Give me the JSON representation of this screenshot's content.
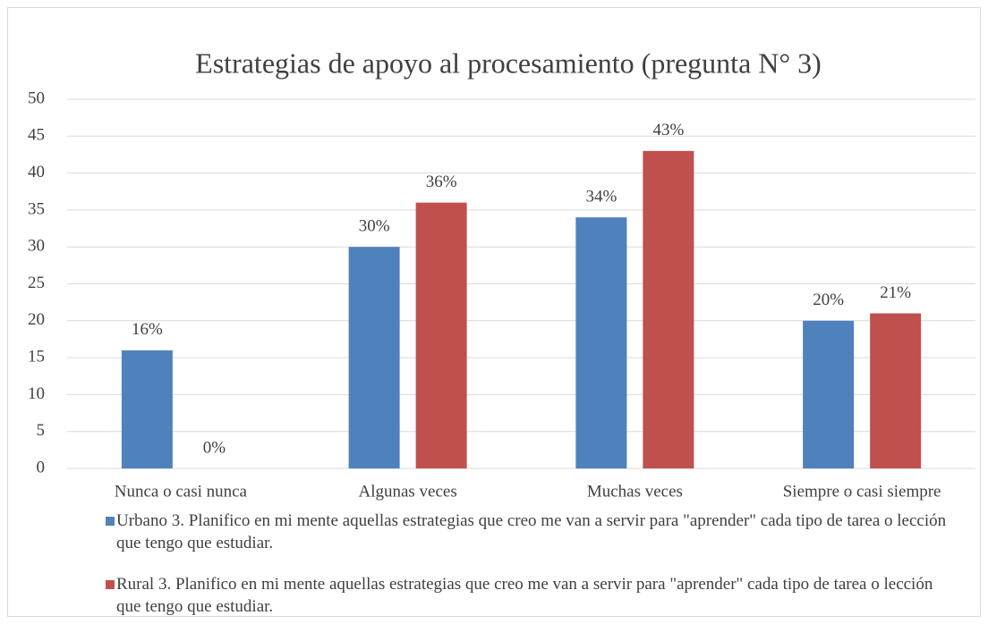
{
  "chart_data": {
    "type": "bar",
    "title": "Estrategias de apoyo al procesamiento    (pregunta N° 3)",
    "categories": [
      "Nunca o casi nunca",
      "Algunas veces",
      "Muchas veces",
      "Siempre o casi siempre"
    ],
    "series": [
      {
        "name": "Urbano 3. Planifico en mi mente aquellas estrategias que creo me van a servir para \"aprender\" cada tipo de tarea o lección que tengo que estudiar.",
        "color": "#4f81bd",
        "values": [
          16,
          30,
          34,
          20
        ],
        "value_labels": [
          "16%",
          "30%",
          "34%",
          "20%"
        ]
      },
      {
        "name": "Rural 3. Planifico en mi mente aquellas estrategias que creo me van a servir para \"aprender\" cada tipo de tarea o lección que tengo que estudiar.",
        "color": "#c0504d",
        "values": [
          0,
          36,
          43,
          21
        ],
        "value_labels": [
          "0%",
          "36%",
          "43%",
          "21%"
        ]
      }
    ],
    "ylim": [
      0,
      50
    ],
    "yticks": [
      0,
      5,
      10,
      15,
      20,
      25,
      30,
      35,
      40,
      45,
      50
    ],
    "grid": true
  }
}
